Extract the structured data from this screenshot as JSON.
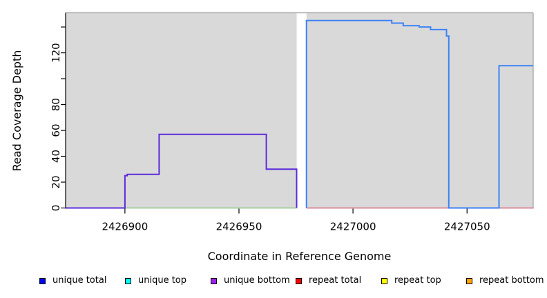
{
  "figure": {
    "background_color": "#ffffff",
    "text_color": "#000000"
  },
  "chart_data": {
    "type": "line",
    "subtype": "step-coverage",
    "title": "",
    "xlabel": "Coordinate in Reference Genome",
    "ylabel": "Read Coverage Depth",
    "xlim": [
      2426874,
      2427079
    ],
    "ylim": [
      0,
      151
    ],
    "grid": false,
    "plot_background_color": "#d9d9d9",
    "plot_border_color": "#ababab",
    "axis_color": "#000000",
    "x_ticks": [
      {
        "value": 2426900,
        "label": "2426900"
      },
      {
        "value": 2426950,
        "label": "2426950"
      },
      {
        "value": 2427000,
        "label": "2427000"
      },
      {
        "value": 2427050,
        "label": "2427050"
      }
    ],
    "y_ticks": [
      {
        "value": 0,
        "label": "0"
      },
      {
        "value": 20,
        "label": "20"
      },
      {
        "value": 40,
        "label": "40"
      },
      {
        "value": 60,
        "label": "60"
      },
      {
        "value": 80,
        "label": "80"
      },
      {
        "value": 100,
        "label": ""
      },
      {
        "value": 120,
        "label": "120"
      },
      {
        "value": 140,
        "label": ""
      }
    ],
    "coverage_regions": [
      [
        2426874,
        2426975.3
      ],
      [
        2426979.6,
        2427079
      ]
    ],
    "gap_region": [
      2426975.3,
      2426979.6
    ],
    "series": [
      {
        "name": "unique top baseline (green)",
        "color": "#7cc87c",
        "width": 1.3,
        "points": [
          [
            2426900,
            0
          ],
          [
            2426975.3,
            0
          ]
        ]
      },
      {
        "name": "repeat total",
        "color": "#e0506e",
        "width": 1.3,
        "points": [
          [
            2426979.6,
            0
          ],
          [
            2427079,
            0
          ]
        ]
      },
      {
        "name": "unique bottom",
        "color": "#5b2bdc",
        "width": 2,
        "points": [
          [
            2426874,
            0
          ],
          [
            2426900,
            0
          ],
          [
            2426900,
            25
          ],
          [
            2426901,
            25
          ],
          [
            2426901,
            26
          ],
          [
            2426915,
            26
          ],
          [
            2426915,
            57
          ],
          [
            2426962,
            57
          ],
          [
            2426962,
            30
          ],
          [
            2426975.3,
            30
          ],
          [
            2426975.3,
            0
          ]
        ]
      },
      {
        "name": "unique total",
        "color": "#3c82f6",
        "width": 2,
        "points": [
          [
            2426979.6,
            0
          ],
          [
            2426979.6,
            145
          ],
          [
            2427017,
            145
          ],
          [
            2427017,
            143
          ],
          [
            2427022,
            143
          ],
          [
            2427022,
            141
          ],
          [
            2427029,
            141
          ],
          [
            2427029,
            140
          ],
          [
            2427034,
            140
          ],
          [
            2427034,
            138
          ],
          [
            2427041,
            138
          ],
          [
            2427041,
            133
          ],
          [
            2427042,
            133
          ],
          [
            2427042,
            0
          ],
          [
            2427064,
            0
          ],
          [
            2427064,
            110
          ],
          [
            2427079,
            110
          ]
        ]
      }
    ],
    "legend": {
      "position": "bottom",
      "swatch_border_color": "#000000",
      "entries": [
        {
          "label": "unique total",
          "color": "#0000ff"
        },
        {
          "label": "unique top",
          "color": "#00ffff"
        },
        {
          "label": "unique bottom",
          "color": "#a020f0"
        },
        {
          "label": "repeat total",
          "color": "#ff0000"
        },
        {
          "label": "repeat top",
          "color": "#ffff00"
        },
        {
          "label": "repeat bottom",
          "color": "#ffa500"
        }
      ]
    }
  }
}
